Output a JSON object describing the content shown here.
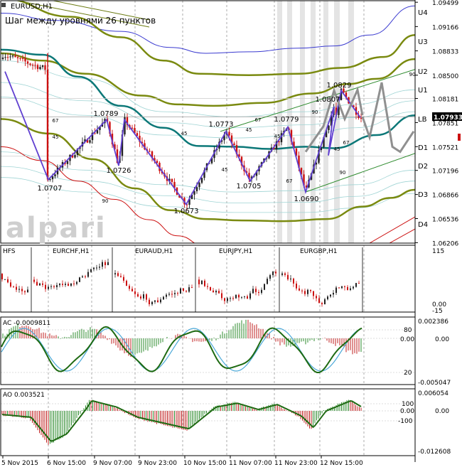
{
  "chart_data": {
    "type": "candlestick",
    "symbol": "EURUSD,H1",
    "title": "Шаг между уровнями 26 пунктов",
    "watermark": "alpari",
    "price_axis": {
      "min": 1.062,
      "max": 1.0952,
      "ticks": [
        "1.09499",
        "1.09166",
        "1.08833",
        "1.08500",
        "1.08181",
        "1.07851",
        "1.07521",
        "1.07196",
        "1.06866",
        "1.06536",
        "1.06206"
      ]
    },
    "current_price": "1.07933",
    "level_labels": [
      "U4",
      "U3",
      "U2",
      "U1",
      "LB",
      "D1",
      "D2",
      "D3",
      "D4"
    ],
    "price_labels": [
      {
        "text": "1.0707",
        "price": 1.0707
      },
      {
        "text": "1.0789",
        "price": 1.0789
      },
      {
        "text": "1.0726",
        "price": 1.0726
      },
      {
        "text": "1.0673",
        "price": 1.0673
      },
      {
        "text": "1.0773",
        "price": 1.0773
      },
      {
        "text": "1.0705",
        "price": 1.0705
      },
      {
        "text": "1.0779",
        "price": 1.0779
      },
      {
        "text": "1.0690",
        "price": 1.069
      },
      {
        "text": "1.0807",
        "price": 1.0807
      },
      {
        "text": "1.0829",
        "price": 1.0829
      }
    ],
    "angle_labels": [
      "67",
      "45",
      "90",
      "45",
      "45",
      "67",
      "45",
      "67",
      "90",
      "45",
      "67",
      "90",
      "45",
      "90"
    ],
    "x_axis_labels": [
      "5 Nov 2015",
      "6 Nov 15:00",
      "9 Nov 07:00",
      "9 Nov 23:00",
      "10 Nov 15:00",
      "11 Nov 07:00",
      "11 Nov 23:00",
      "12 Nov 15:00"
    ],
    "zigzag": [
      1.0855,
      1.0707,
      1.0789,
      1.0726,
      1.0789,
      1.0673,
      1.0773,
      1.0705,
      1.0779,
      1.069,
      1.0807,
      1.074,
      1.0829,
      1.0792
    ],
    "projection": [
      1.0793,
      1.0765,
      1.084,
      1.0752,
      1.0745,
      1.0773
    ],
    "hfs": {
      "title": "HFS",
      "symbols": [
        "EURCHF,H1",
        "EURAUD,H1",
        "EURJPY,H1",
        "EURGBP,H1"
      ],
      "axis": [
        "115",
        "0.00",
        "-15"
      ]
    },
    "ac": {
      "title": "AC -0.0009811",
      "axis_right": [
        "0.002386",
        "0.00",
        "-0.005047"
      ],
      "axis_left": [
        "80",
        "0.00",
        "20"
      ]
    },
    "ao": {
      "title": "AO 0.003521",
      "axis_right": [
        "0.006054",
        "0.00",
        "-0.012608"
      ],
      "axis_left": [
        "100",
        "0.00",
        "-100"
      ]
    }
  }
}
